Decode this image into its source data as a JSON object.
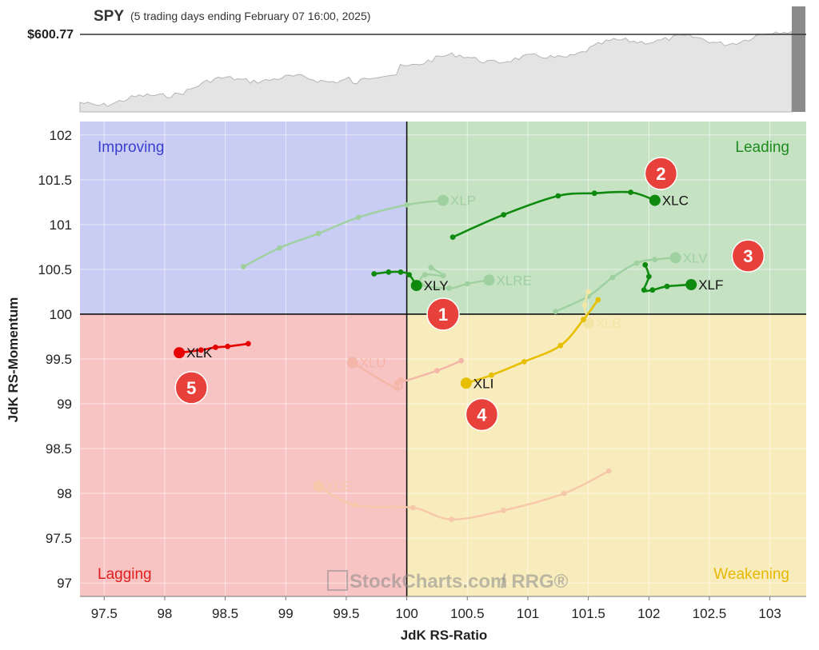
{
  "benchmark": {
    "symbol": "SPY",
    "caption": "(5 trading days ending February 07 16:00, 2025)",
    "price_label": "$600.77"
  },
  "watermark": {
    "brand": "StockCharts.com",
    "product": "/ RRG®"
  },
  "quadrants": {
    "improving": {
      "label": "Improving",
      "color": "#3a3fd0",
      "fill": "#c9cdf3"
    },
    "leading": {
      "label": "Leading",
      "color": "#1f8a1f",
      "fill": "#c5e3c3"
    },
    "lagging": {
      "label": "Lagging",
      "color": "#e02020",
      "fill": "#f8c3c3"
    },
    "weakening": {
      "label": "Weakening",
      "color": "#e6b800",
      "fill": "#f8ecbd"
    }
  },
  "chart_data": {
    "type": "scatter",
    "subtype": "relative-rotation-graph",
    "xlabel": "JdK RS-Ratio",
    "ylabel": "JdK RS-Momentum",
    "xlim": [
      97.3,
      103.3
    ],
    "ylim": [
      96.85,
      102.15
    ],
    "x_ticks": [
      "97.5",
      "98",
      "98.5",
      "99",
      "99.5",
      "100",
      "100.5",
      "101",
      "101.5",
      "102",
      "102.5",
      "103"
    ],
    "y_ticks": [
      "97",
      "97.5",
      "98",
      "98.5",
      "99",
      "99.5",
      "100",
      "100.5",
      "101",
      "101.5",
      "102"
    ],
    "x_tick_values": [
      97.5,
      98,
      98.5,
      99,
      99.5,
      100,
      100.5,
      101,
      101.5,
      102,
      102.5,
      103
    ],
    "y_tick_values": [
      97,
      97.5,
      98,
      98.5,
      99,
      99.5,
      100,
      100.5,
      101,
      101.5,
      102
    ],
    "grid": true,
    "center": [
      100,
      100
    ],
    "series": [
      {
        "name": "XLC",
        "color": "#0e8a0e",
        "faded": false,
        "x": [
          100.38,
          100.8,
          101.25,
          101.55,
          101.85,
          102.05
        ],
        "y": [
          100.86,
          101.11,
          101.32,
          101.35,
          101.36,
          101.27
        ]
      },
      {
        "name": "XLF",
        "color": "#0e8a0e",
        "faded": false,
        "x": [
          101.97,
          102.0,
          101.96,
          102.03,
          102.15,
          102.35
        ],
        "y": [
          100.55,
          100.42,
          100.27,
          100.27,
          100.31,
          100.33
        ]
      },
      {
        "name": "XLY",
        "color": "#0e8a0e",
        "faded": false,
        "x": [
          99.73,
          99.85,
          99.95,
          100.02,
          100.08
        ],
        "y": [
          100.45,
          100.47,
          100.47,
          100.44,
          100.32
        ]
      },
      {
        "name": "XLI",
        "color": "#e6c000",
        "faded": false,
        "x": [
          101.58,
          101.46,
          101.27,
          100.97,
          100.7,
          100.49
        ],
        "y": [
          100.16,
          99.94,
          99.65,
          99.47,
          99.32,
          99.23
        ]
      },
      {
        "name": "XLK",
        "color": "#e60000",
        "faded": false,
        "x": [
          98.69,
          98.52,
          98.42,
          98.3,
          98.12
        ],
        "y": [
          99.67,
          99.64,
          99.63,
          99.6,
          99.57
        ]
      },
      {
        "name": "XLP",
        "color": "#9fd0a0",
        "faded": true,
        "x": [
          98.65,
          98.95,
          99.27,
          99.6,
          100.0,
          100.3
        ],
        "y": [
          100.53,
          100.74,
          100.9,
          101.08,
          101.22,
          101.27
        ]
      },
      {
        "name": "XLV",
        "color": "#9fd0a0",
        "faded": true,
        "x": [
          101.23,
          101.5,
          101.7,
          101.9,
          102.05,
          102.22
        ],
        "y": [
          100.03,
          100.2,
          100.41,
          100.57,
          100.61,
          100.63
        ]
      },
      {
        "name": "XLRE",
        "color": "#9fd0a0",
        "faded": true,
        "x": [
          100.2,
          100.3,
          100.15,
          100.12,
          100.35,
          100.5,
          100.68
        ],
        "y": [
          100.52,
          100.43,
          100.44,
          100.33,
          100.29,
          100.34,
          100.38
        ]
      },
      {
        "name": "XLB",
        "color": "#f3e5a6",
        "faded": true,
        "x": [
          101.5,
          101.47,
          101.5
        ],
        "y": [
          100.25,
          100.1,
          99.9
        ]
      },
      {
        "name": "XLU",
        "color": "#f4b6a9",
        "faded": true,
        "x": [
          100.45,
          100.25,
          99.92,
          99.95,
          99.92,
          99.55
        ],
        "y": [
          99.48,
          99.37,
          99.23,
          99.27,
          99.17,
          99.46
        ]
      },
      {
        "name": "XLE",
        "color": "#f6c7a8",
        "faded": true,
        "x": [
          101.67,
          101.3,
          100.8,
          100.37,
          100.05,
          99.57,
          99.27
        ],
        "y": [
          98.25,
          98.0,
          97.81,
          97.71,
          97.84,
          97.87,
          98.08
        ]
      }
    ],
    "annotations": [
      {
        "text": "1",
        "x": 100.3,
        "y": 100.0
      },
      {
        "text": "2",
        "x": 102.1,
        "y": 101.57
      },
      {
        "text": "3",
        "x": 102.82,
        "y": 100.65
      },
      {
        "text": "4",
        "x": 100.62,
        "y": 98.88
      },
      {
        "text": "5",
        "x": 98.22,
        "y": 99.18
      }
    ]
  }
}
